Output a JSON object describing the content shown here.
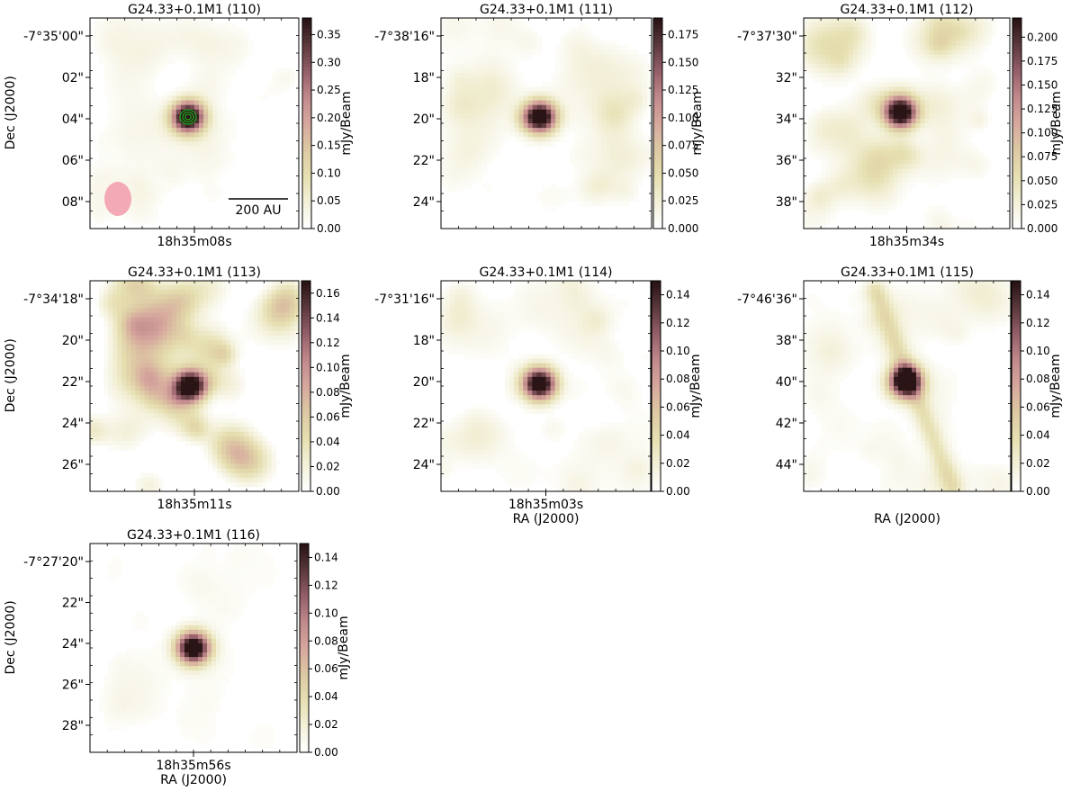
{
  "colormap": [
    "#ffffff",
    "#f3f0d8",
    "#e6dfb0",
    "#ddc9a4",
    "#d7a89e",
    "#c28a8c",
    "#96606a",
    "#5e3a3e",
    "#2a1416"
  ],
  "contour_color": "#1ea01e",
  "beam_color": "#f4aab6",
  "chart_data": [
    {
      "type": "heatmap",
      "title": "G24.33+0.1M1 (110)",
      "ylabel": "Dec (J2000)",
      "xlabel": "",
      "y_ticks": [
        "-7°35'00\"",
        "02\"",
        "04\"",
        "06\"",
        "08\""
      ],
      "x_ticks": [
        "18h35m08s"
      ],
      "colorbar_label": "mJy/Beam",
      "colorbar_ticks": [
        "0.00",
        "0.05",
        "0.10",
        "0.15",
        "0.20",
        "0.25",
        "0.30",
        "0.35"
      ],
      "colorbar_range": [
        0.0,
        0.38
      ],
      "scalebar_label": "200 AU",
      "peak": 0.38,
      "source_offset": [
        0.47,
        0.47
      ],
      "contours": true,
      "beam": true,
      "noise_level": 0.1,
      "filaments": [
        [
          0.05,
          0.95,
          0.98,
          0.55,
          0.05
        ]
      ]
    },
    {
      "type": "heatmap",
      "title": "G24.33+0.1M1 (111)",
      "ylabel": "",
      "xlabel": "",
      "y_ticks": [
        "-7°38'16\"",
        "18\"",
        "20\"",
        "22\"",
        "24\""
      ],
      "x_ticks": [],
      "colorbar_label": "mJy/Beam",
      "colorbar_ticks": [
        "0.000",
        "0.025",
        "0.050",
        "0.075",
        "0.100",
        "0.125",
        "0.150",
        "0.175"
      ],
      "colorbar_range": [
        0.0,
        0.19
      ],
      "peak": 0.19,
      "source_offset": [
        0.47,
        0.47
      ],
      "noise_level": 0.16,
      "filaments": []
    },
    {
      "type": "heatmap",
      "title": "G24.33+0.1M1 (112)",
      "ylabel": "",
      "xlabel": "",
      "y_ticks": [
        "-7°37'30\"",
        "32\"",
        "34\"",
        "36\"",
        "38\""
      ],
      "x_ticks": [
        "18h35m34s"
      ],
      "colorbar_label": "mJy/Beam",
      "colorbar_ticks": [
        "0.000",
        "0.025",
        "0.050",
        "0.075",
        "0.100",
        "0.125",
        "0.150",
        "0.175",
        "0.200"
      ],
      "colorbar_range": [
        0.0,
        0.22
      ],
      "peak": 0.22,
      "source_offset": [
        0.47,
        0.45
      ],
      "noise_level": 0.22,
      "filaments": []
    },
    {
      "type": "heatmap",
      "title": "G24.33+0.1M1 (113)",
      "ylabel": "Dec (J2000)",
      "xlabel": "",
      "y_ticks": [
        "-7°34'18\"",
        "20\"",
        "22\"",
        "24\"",
        "26\""
      ],
      "x_ticks": [
        "18h35m11s"
      ],
      "colorbar_label": "mJy/Beam",
      "colorbar_ticks": [
        "0.00",
        "0.02",
        "0.04",
        "0.06",
        "0.08",
        "0.10",
        "0.12",
        "0.14",
        "0.16"
      ],
      "colorbar_range": [
        0.0,
        0.17
      ],
      "peak": 0.17,
      "source_offset": [
        0.48,
        0.5
      ],
      "noise_level": 0.42,
      "filaments": []
    },
    {
      "type": "heatmap",
      "title": "G24.33+0.1M1 (114)",
      "ylabel": "",
      "xlabel": "RA (J2000)",
      "y_ticks": [
        "-7°31'16\"",
        "18\"",
        "20\"",
        "22\"",
        "24\""
      ],
      "x_ticks": [
        "18h35m03s"
      ],
      "colorbar_label": "mJy/Beam",
      "colorbar_ticks": [
        "0.00",
        "0.02",
        "0.04",
        "0.06",
        "0.08",
        "0.10",
        "0.12",
        "0.14"
      ],
      "colorbar_range": [
        0.0,
        0.15
      ],
      "peak": 0.15,
      "source_offset": [
        0.47,
        0.49
      ],
      "noise_level": 0.14,
      "filaments": []
    },
    {
      "type": "heatmap",
      "title": "G24.33+0.1M1 (115)",
      "ylabel": "",
      "xlabel": "RA (J2000)",
      "y_ticks": [
        "-7°46'36\"",
        "38\"",
        "40\"",
        "42\"",
        "44\""
      ],
      "x_ticks": [],
      "colorbar_label": "mJy/Beam",
      "colorbar_ticks": [
        "0.00",
        "0.02",
        "0.04",
        "0.06",
        "0.08",
        "0.10",
        "0.12",
        "0.14"
      ],
      "colorbar_range": [
        0.0,
        0.15
      ],
      "peak": 0.15,
      "source_offset": [
        0.49,
        0.48
      ],
      "noise_level": 0.12,
      "filaments": [
        [
          0.35,
          0.05,
          0.5,
          0.45,
          0.6
        ],
        [
          0.5,
          0.45,
          0.72,
          0.98,
          0.6
        ]
      ]
    },
    {
      "type": "heatmap",
      "title": "G24.33+0.1M1 (116)",
      "ylabel": "Dec (J2000)",
      "xlabel": "RA (J2000)",
      "y_ticks": [
        "-7°27'20\"",
        "22\"",
        "24\"",
        "26\"",
        "28\""
      ],
      "x_ticks": [
        "18h35m56s"
      ],
      "colorbar_label": "mJy/Beam",
      "colorbar_ticks": [
        "0.00",
        "0.02",
        "0.04",
        "0.06",
        "0.08",
        "0.10",
        "0.12",
        "0.14"
      ],
      "colorbar_range": [
        0.0,
        0.15
      ],
      "peak": 0.16,
      "source_offset": [
        0.5,
        0.5
      ],
      "noise_level": 0.05,
      "filaments": []
    }
  ]
}
